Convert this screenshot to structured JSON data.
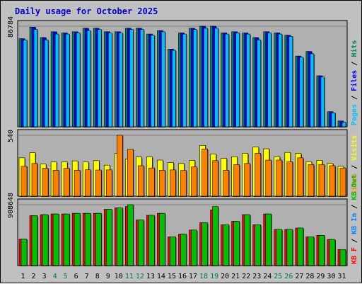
{
  "title": "Daily usage for October 2025",
  "colors": {
    "frame_bg": "#c0c0c0",
    "panel_bg": "#b0b0b0",
    "title_text": "#0000cc",
    "tick_text": "#000000",
    "weekend_tick_text": "#008040",
    "hits": "#00805c",
    "files": "#0000ff",
    "pages": "#00c0ff",
    "visits": "#ffff00",
    "sites": "#ff8000",
    "kb_f": "#ff0000",
    "kb_in": "#0080ff",
    "kb_out": "#00c000",
    "separator": "#000000"
  },
  "chart_data": [
    {
      "type": "bar",
      "name": "hits-files-pages",
      "ymax_label": "86784",
      "ylim": [
        0,
        86784
      ],
      "legend": [
        "Pages",
        "Files",
        "Hits"
      ],
      "legend_sep": "/",
      "categories": [
        "1",
        "2",
        "3",
        "4",
        "5",
        "6",
        "7",
        "8",
        "9",
        "10",
        "11",
        "12",
        "13",
        "14",
        "15",
        "16",
        "17",
        "18",
        "19",
        "20",
        "21",
        "22",
        "23",
        "24",
        "25",
        "26",
        "27",
        "28",
        "29",
        "30",
        "31"
      ],
      "weekend_days": [
        "4",
        "5",
        "11",
        "12",
        "18",
        "19",
        "25",
        "26"
      ],
      "series": [
        {
          "name": "Hits",
          "values": [
            76000,
            86000,
            77000,
            82000,
            81000,
            82000,
            85000,
            85000,
            82000,
            82000,
            85000,
            85000,
            80000,
            83000,
            67000,
            81000,
            85000,
            86784,
            86784,
            81000,
            82000,
            81000,
            77000,
            82000,
            81000,
            79000,
            61000,
            65000,
            44000,
            13000,
            5000
          ]
        },
        {
          "name": "Files",
          "values": [
            76000,
            86000,
            77000,
            82000,
            81000,
            82000,
            85000,
            85000,
            82000,
            82000,
            85000,
            85000,
            80000,
            83000,
            67000,
            81000,
            85000,
            86784,
            86784,
            81000,
            82000,
            81000,
            77000,
            82000,
            81000,
            79000,
            61000,
            65000,
            44000,
            13000,
            5000
          ]
        },
        {
          "name": "Pages",
          "values": [
            75000,
            84000,
            75000,
            80000,
            80000,
            81000,
            83000,
            84000,
            81000,
            81000,
            84000,
            84000,
            79000,
            82000,
            66000,
            80000,
            84000,
            85000,
            85000,
            80000,
            81000,
            80000,
            75000,
            81000,
            80000,
            78000,
            60000,
            63000,
            43000,
            12000,
            4000
          ]
        }
      ]
    },
    {
      "type": "bar",
      "name": "visits-sites",
      "ymax_label": "540",
      "ylim": [
        0,
        540
      ],
      "legend": [
        "Sites",
        "Visits"
      ],
      "legend_sep": "/",
      "categories": [
        "1",
        "2",
        "3",
        "4",
        "5",
        "6",
        "7",
        "8",
        "9",
        "10",
        "11",
        "12",
        "13",
        "14",
        "15",
        "16",
        "17",
        "18",
        "19",
        "20",
        "21",
        "22",
        "23",
        "24",
        "25",
        "26",
        "27",
        "28",
        "29",
        "30",
        "31"
      ],
      "series": [
        {
          "name": "Visits",
          "values": [
            340,
            385,
            285,
            303,
            303,
            313,
            303,
            315,
            275,
            380,
            330,
            348,
            348,
            320,
            298,
            290,
            318,
            450,
            375,
            335,
            350,
            380,
            436,
            420,
            350,
            388,
            380,
            305,
            318,
            290,
            265
          ]
        },
        {
          "name": "Sites",
          "values": [
            265,
            290,
            248,
            230,
            247,
            230,
            234,
            232,
            233,
            540,
            416,
            270,
            250,
            230,
            233,
            228,
            260,
            418,
            315,
            230,
            280,
            290,
            380,
            320,
            320,
            305,
            340,
            280,
            280,
            270,
            250
          ]
        }
      ]
    },
    {
      "type": "bar",
      "name": "kbf-kbin-kbout",
      "ymax_label": "908648",
      "ylim": [
        0,
        908648
      ],
      "legend": [
        "KB F",
        "KB In",
        "KB Out"
      ],
      "legend_sep": "/",
      "categories": [
        "1",
        "2",
        "3",
        "4",
        "5",
        "6",
        "7",
        "8",
        "9",
        "10",
        "11",
        "12",
        "13",
        "14",
        "15",
        "16",
        "17",
        "18",
        "19",
        "20",
        "21",
        "22",
        "23",
        "24",
        "25",
        "26",
        "27",
        "28",
        "29",
        "30",
        "31"
      ],
      "series": [
        {
          "name": "KB F",
          "values": [
            395000,
            745000,
            760000,
            770000,
            770000,
            780000,
            780000,
            780000,
            840000,
            860000,
            880000,
            680000,
            750000,
            780000,
            430000,
            470000,
            530000,
            640000,
            830000,
            610000,
            660000,
            760000,
            610000,
            770000,
            540000,
            540000,
            560000,
            430000,
            450000,
            390000,
            240000
          ]
        },
        {
          "name": "KB Out",
          "values": [
            395000,
            745000,
            760000,
            770000,
            770000,
            780000,
            780000,
            780000,
            840000,
            860000,
            908648,
            680000,
            750000,
            780000,
            430000,
            470000,
            530000,
            640000,
            880000,
            610000,
            660000,
            760000,
            610000,
            770000,
            540000,
            540000,
            560000,
            430000,
            450000,
            390000,
            240000
          ]
        }
      ]
    }
  ]
}
